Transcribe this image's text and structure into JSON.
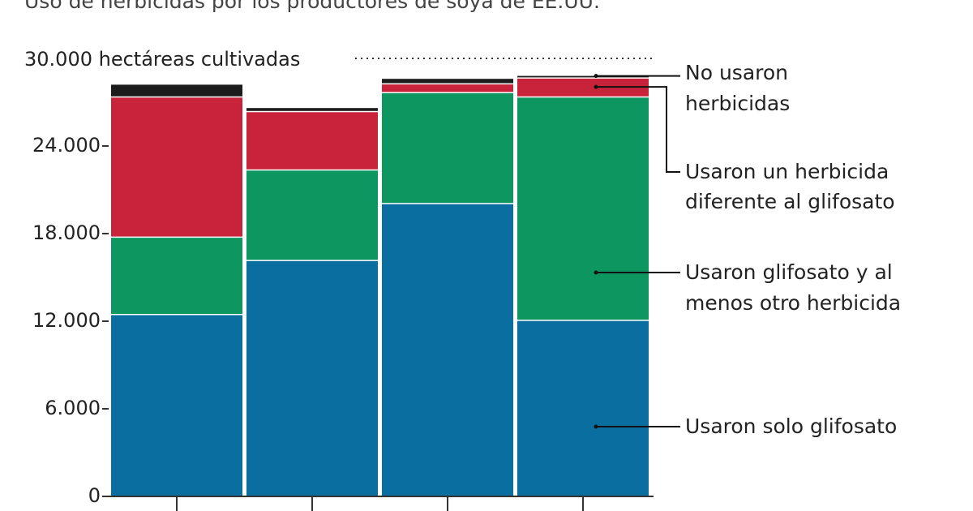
{
  "title": "Uso de herbicidas por los productores de soya de EE.UU.",
  "unit_label": "30.000 hectáreas cultivadas",
  "colors": {
    "only_glyphosate": "#0b6ea1",
    "glyphosate_plus": "#0d9660",
    "other_herbicide": "#c8233a",
    "no_herbicide": "#1c1c1c",
    "background": "#ffffff"
  },
  "chart_data": {
    "type": "bar",
    "stacked": true,
    "title": "Uso de herbicidas por los productores de soya de EE.UU.",
    "ylim": [
      0,
      30000
    ],
    "y_ticks": [
      {
        "value": 0,
        "label": "0"
      },
      {
        "value": 6000,
        "label": "6.000"
      },
      {
        "value": 12000,
        "label": "12.000"
      },
      {
        "value": 18000,
        "label": "18.000"
      },
      {
        "value": 24000,
        "label": "24.000"
      }
    ],
    "y_top_label": "30.000 hectáreas cultivadas",
    "categories": [
      "",
      "",
      "",
      ""
    ],
    "grid": false,
    "legend_position": "right",
    "series": [
      {
        "key": "only_glyphosate",
        "name": "Usaron solo glifosato",
        "values": [
          12500,
          16200,
          20100,
          12100
        ]
      },
      {
        "key": "glyphosate_plus",
        "name": "Usaron glifosato y al menos otro herbicida",
        "values": [
          5300,
          6200,
          7600,
          15300
        ]
      },
      {
        "key": "other_herbicide",
        "name": "Usaron un herbicida diferente al glifosato",
        "values": [
          9600,
          4000,
          600,
          1300
        ]
      },
      {
        "key": "no_herbicide",
        "name": "No usaron herbicidas",
        "values": [
          800,
          200,
          300,
          100
        ]
      }
    ]
  },
  "legend": [
    {
      "key": "no_herbicide",
      "lines": [
        "No usaron",
        "herbicidas"
      ]
    },
    {
      "key": "other_herbicide",
      "lines": [
        "Usaron un herbicida",
        "diferente al glifosato"
      ]
    },
    {
      "key": "glyphosate_plus",
      "lines": [
        "Usaron glifosato y al",
        "menos otro herbicida"
      ]
    },
    {
      "key": "only_glyphosate",
      "lines": [
        "Usaron solo glifosato"
      ]
    }
  ]
}
